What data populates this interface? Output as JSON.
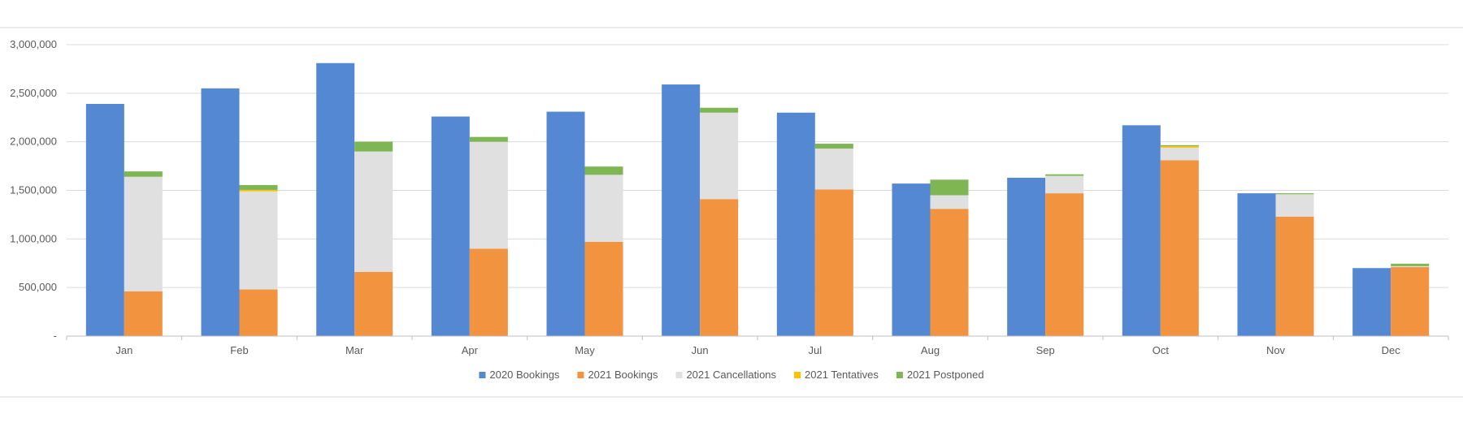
{
  "chart_data": {
    "type": "bar",
    "title": "",
    "xlabel": "",
    "ylabel": "",
    "ylim": [
      0,
      3000000
    ],
    "grid": true,
    "legend_position": "bottom",
    "y_ticks": [
      {
        "value": 0,
        "label": "-"
      },
      {
        "value": 500000,
        "label": "500,000"
      },
      {
        "value": 1000000,
        "label": "1,000,000"
      },
      {
        "value": 1500000,
        "label": "1,500,000"
      },
      {
        "value": 2000000,
        "label": "2,000,000"
      },
      {
        "value": 2500000,
        "label": "2,500,000"
      },
      {
        "value": 3000000,
        "label": "3,000,000"
      }
    ],
    "categories": [
      "Jan",
      "Feb",
      "Mar",
      "Apr",
      "May",
      "Jun",
      "Jul",
      "Aug",
      "Sep",
      "Oct",
      "Nov",
      "Dec"
    ],
    "series": [
      {
        "name": "2020 Bookings",
        "stack": "2020",
        "color": "#5588D3",
        "values": [
          2390000,
          2550000,
          2810000,
          2260000,
          2310000,
          2590000,
          2300000,
          1570000,
          1630000,
          2170000,
          1470000,
          700000
        ]
      },
      {
        "name": "2021 Bookings",
        "stack": "2021",
        "color": "#F29340",
        "values": [
          460000,
          480000,
          660000,
          900000,
          970000,
          1410000,
          1510000,
          1310000,
          1470000,
          1810000,
          1230000,
          710000
        ]
      },
      {
        "name": "2021 Cancellations",
        "stack": "2021",
        "color": "#E0E0E0",
        "values": [
          1180000,
          1010000,
          1240000,
          1100000,
          690000,
          890000,
          420000,
          140000,
          180000,
          130000,
          230000,
          10000
        ]
      },
      {
        "name": "2021 Tentatives",
        "stack": "2021",
        "color": "#FFC000",
        "values": [
          0,
          15000,
          0,
          0,
          0,
          0,
          0,
          0,
          0,
          15000,
          0,
          0
        ]
      },
      {
        "name": "2021 Postponed",
        "stack": "2021",
        "color": "#7DB653",
        "values": [
          55000,
          50000,
          100000,
          50000,
          85000,
          50000,
          50000,
          160000,
          15000,
          10000,
          10000,
          25000
        ]
      }
    ]
  }
}
